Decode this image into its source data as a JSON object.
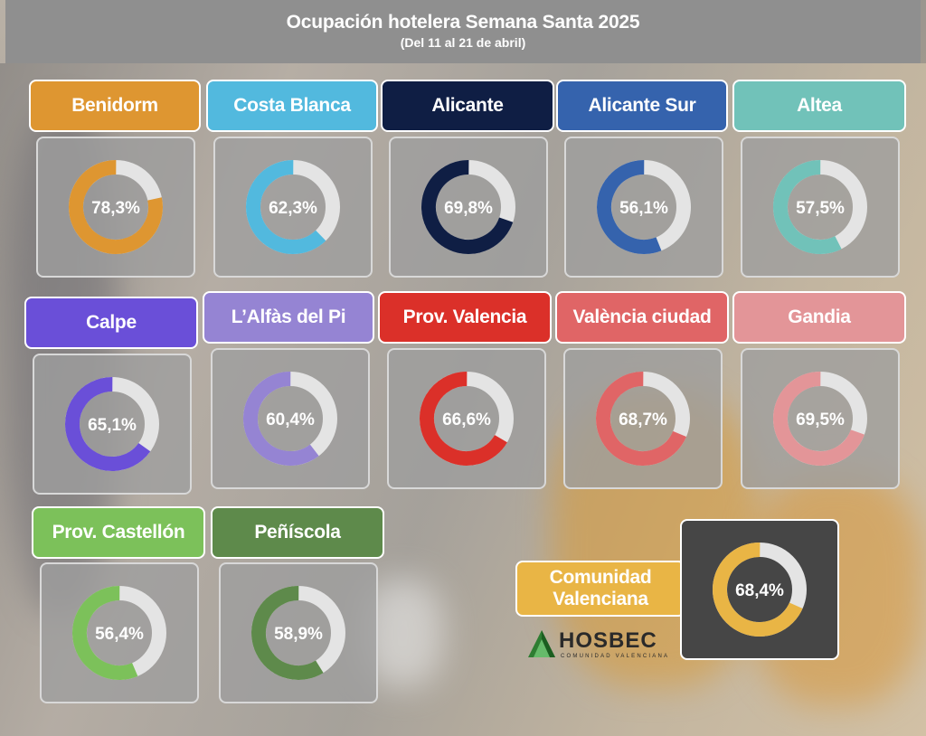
{
  "header": {
    "title": "Ocupación hotelera Semana Santa 2025",
    "subtitle": "(Del 11 al 21 de abril)"
  },
  "chart_data": {
    "type": "pie",
    "variant": "donut",
    "title": "Ocupación hotelera Semana Santa 2025",
    "subtitle": "(Del 11 al 21 de abril)",
    "unit": "%",
    "remainder_color": "#e4e4e4",
    "items": [
      {
        "name": "Benidorm",
        "value": 78.3,
        "label": "78,3%",
        "color": "#de9631"
      },
      {
        "name": "Costa Blanca",
        "value": 62.3,
        "label": "62,3%",
        "color": "#52b9de"
      },
      {
        "name": "Alicante",
        "value": 69.8,
        "label": "69,8%",
        "color": "#0f1e44"
      },
      {
        "name": "Alicante Sur",
        "value": 56.1,
        "label": "56,1%",
        "color": "#3563ad"
      },
      {
        "name": "Altea",
        "value": 57.5,
        "label": "57,5%",
        "color": "#71c2b9"
      },
      {
        "name": "Calpe",
        "value": 65.1,
        "label": "65,1%",
        "color": "#6a4fd8"
      },
      {
        "name": "L’Alfàs del Pi",
        "value": 60.4,
        "label": "60,4%",
        "color": "#9584d3"
      },
      {
        "name": "Prov. Valencia",
        "value": 66.6,
        "label": "66,6%",
        "color": "#db3029"
      },
      {
        "name": "València ciudad",
        "value": 68.7,
        "label": "68,7%",
        "color": "#e06566"
      },
      {
        "name": "Gandia",
        "value": 69.5,
        "label": "69,5%",
        "color": "#e39598"
      },
      {
        "name": "Prov. Castellón",
        "value": 56.4,
        "label": "56,4%",
        "color": "#7cc15a"
      },
      {
        "name": "Peñíscola",
        "value": 58.9,
        "label": "58,9%",
        "color": "#5e8a4b"
      },
      {
        "name": "Comunidad Valenciana",
        "value": 68.4,
        "label": "68,4%",
        "color": "#e9b545"
      }
    ]
  },
  "logo": {
    "name": "HOSBEC",
    "tagline": "COMUNIDAD VALENCIANA"
  }
}
